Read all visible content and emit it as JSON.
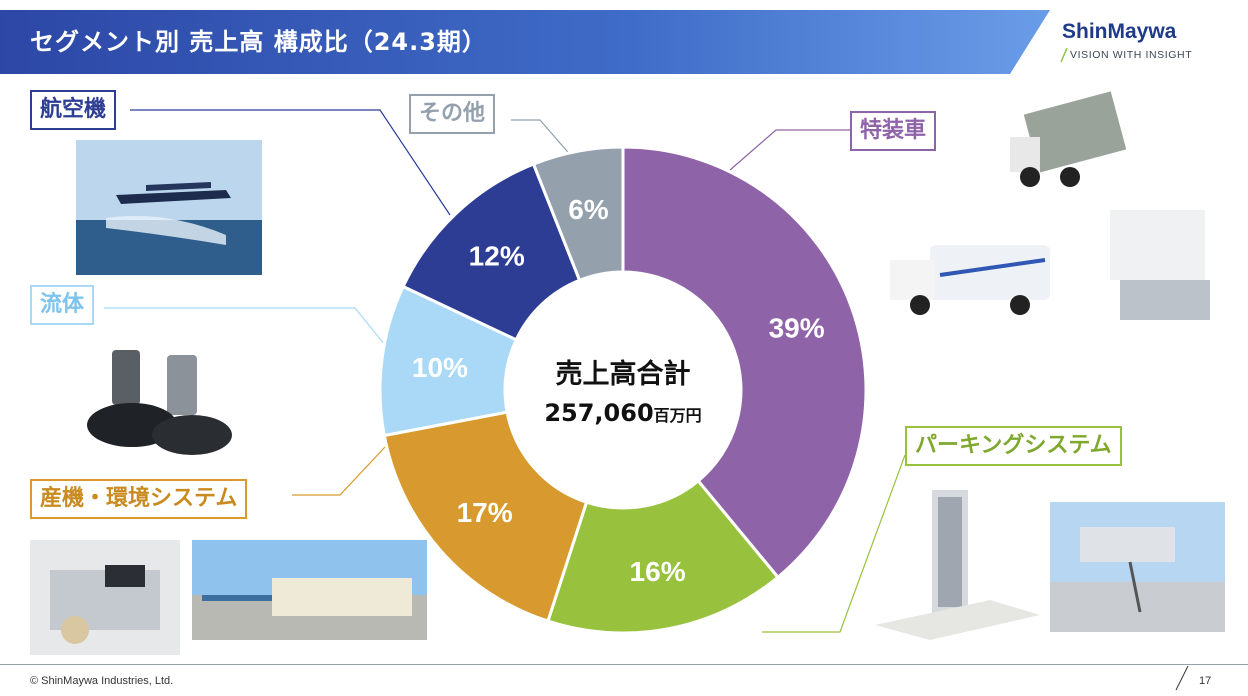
{
  "header": {
    "title": "セグメント別 売上高 構成比（24.3期）"
  },
  "logo": {
    "name": "ShinMaywa",
    "tagline": "VISION WITH INSIGHT"
  },
  "chart_data": {
    "type": "pie",
    "variant": "donut",
    "center_label": "売上高合計",
    "center_value": "257,060",
    "center_unit": "百万円",
    "slices": [
      {
        "name": "特装車",
        "value": 39,
        "label": "39%",
        "color": "#8f63a8"
      },
      {
        "name": "パーキングシステム",
        "value": 16,
        "label": "16%",
        "color": "#98c23d"
      },
      {
        "name": "産機・環境システム",
        "value": 17,
        "label": "17%",
        "color": "#d89a2e"
      },
      {
        "name": "流体",
        "value": 10,
        "label": "10%",
        "color": "#a9d9f7"
      },
      {
        "name": "航空機",
        "value": 12,
        "label": "12%",
        "color": "#2e3d94"
      },
      {
        "name": "その他",
        "value": 6,
        "label": "6%",
        "color": "#94a1ad"
      }
    ]
  },
  "footer": {
    "copyright": "© ShinMaywa Industries, Ltd.",
    "page": "17"
  },
  "colors": {
    "header_start": "#2e4aa8",
    "header_end": "#5b8fe0"
  }
}
